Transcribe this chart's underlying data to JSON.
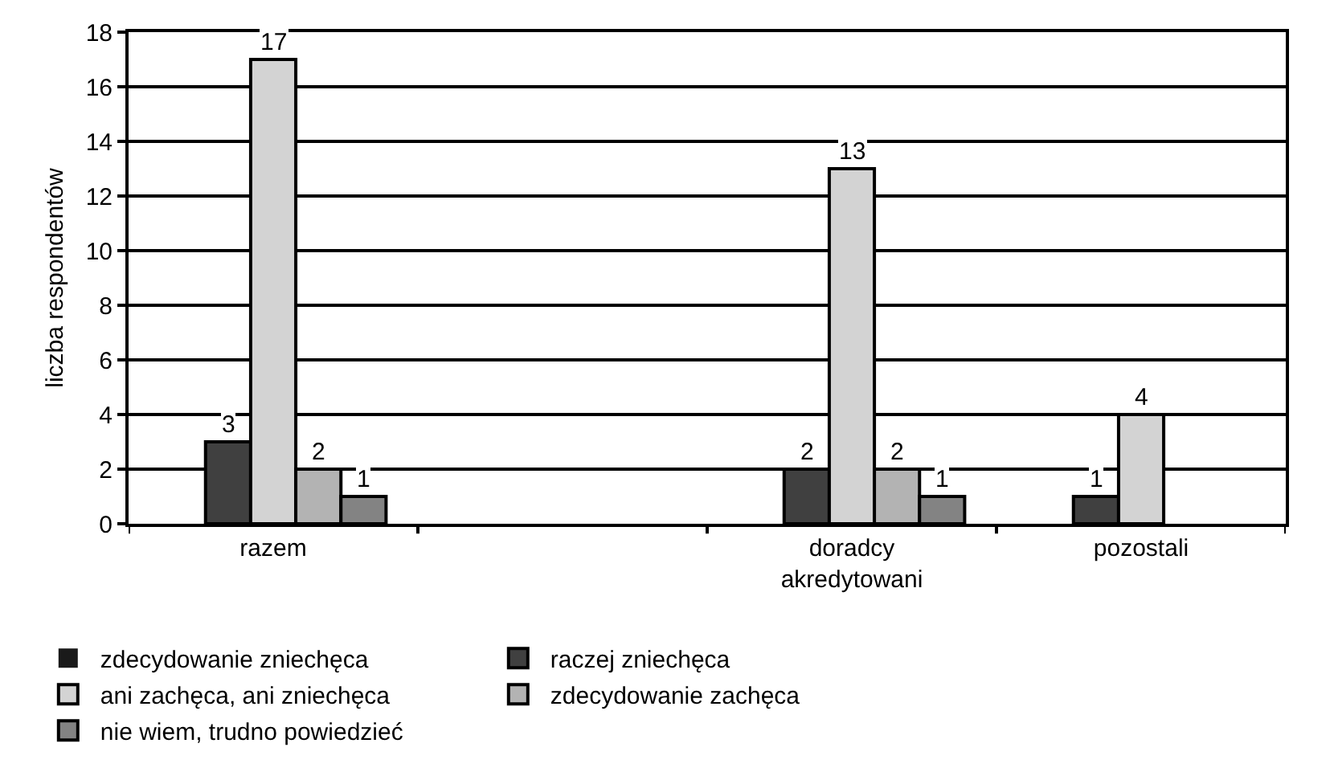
{
  "chart_data": {
    "type": "bar",
    "ylabel": "liczba respondentów",
    "categories": [
      "razem",
      null,
      "doradcy akredytowani",
      "pozostali"
    ],
    "ylim": [
      0,
      18
    ],
    "yticks": [
      0,
      2,
      4,
      6,
      8,
      10,
      12,
      14,
      16,
      18
    ],
    "grid": "y",
    "legend": "bottom",
    "series": [
      {
        "name": "zdecydowanie zniechęca",
        "color": "#1a1a1a",
        "values": [
          0,
          null,
          0,
          0
        ],
        "value_labels": [
          null,
          null,
          null,
          null
        ]
      },
      {
        "name": "raczej zniechęca",
        "color": "#404040",
        "values": [
          3,
          null,
          2,
          1
        ],
        "value_labels": [
          "3",
          null,
          "2",
          "1"
        ]
      },
      {
        "name": "ani zachęca, ani zniechęca",
        "color": "#d3d3d3",
        "values": [
          17,
          null,
          13,
          4
        ],
        "value_labels": [
          "17",
          null,
          "13",
          "4"
        ]
      },
      {
        "name": "zdecydowanie zachęca",
        "color": "#b3b3b3",
        "values": [
          2,
          null,
          2,
          0
        ],
        "value_labels": [
          "2",
          null,
          "2",
          null
        ]
      },
      {
        "name": "nie wiem, trudno powiedzieć",
        "color": "#838383",
        "values": [
          1,
          null,
          1,
          0
        ],
        "value_labels": [
          "1",
          null,
          "1",
          null
        ]
      }
    ]
  }
}
